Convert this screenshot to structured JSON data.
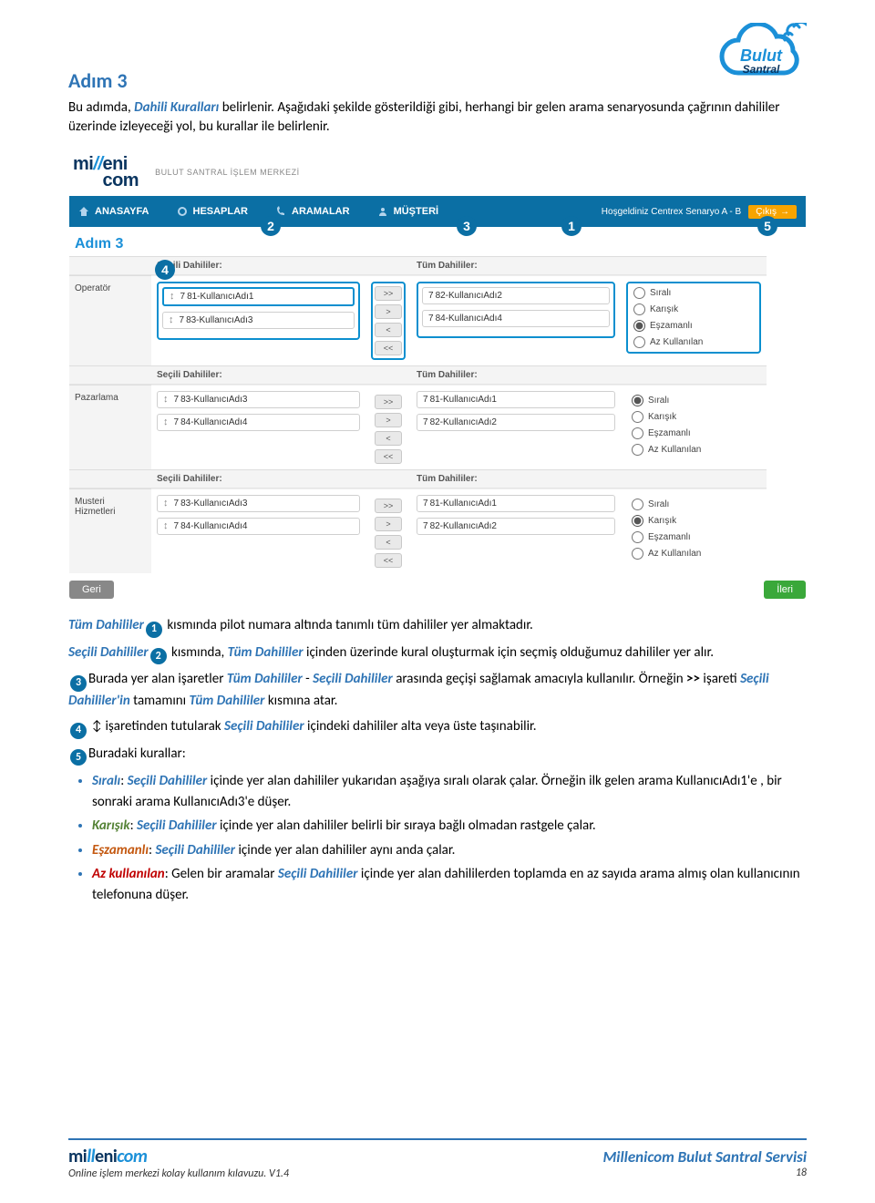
{
  "logo": {
    "line1": "Bulut",
    "line2": "Santral"
  },
  "heading": "Adım 3",
  "intro_parts": {
    "p1": "Bu adımda, ",
    "dahili_kurallari": "Dahili Kuralları",
    "p2": " belirlenir. Aşağıdaki şekilde gösterildiği gibi, herhangi bir gelen arama senaryosunda çağrının dahililer üzerinde izleyeceği yol, bu kurallar ile belirlenir."
  },
  "shot": {
    "brand_sub": "BULUT SANTRAL İŞLEM MERKEZİ",
    "nav": {
      "anasayfa": "ANASAYFA",
      "hesaplar": "HESAPLAR",
      "aramalar": "ARAMALAR",
      "musteri": "MÜŞTERİ"
    },
    "welcome": "Hoşgeldiniz Centrex Senaryo A - B",
    "exit": "Çıkış",
    "step_label": "Adım 3",
    "headers": {
      "secili": "Seçili Dahililer:",
      "tum": "Tüm Dahililer:"
    },
    "rows": [
      {
        "label": "Operatör",
        "secili": [
          {
            "num": "7",
            "rest": "81-KullanıcıAdı1",
            "hl": true
          },
          {
            "num": "7",
            "rest": "83-KullanıcıAdı3"
          }
        ],
        "tum": [
          {
            "num": "7",
            "rest": "82-KullanıcıAdı2"
          },
          {
            "num": "7",
            "rest": "84-KullanıcıAdı4"
          }
        ],
        "radio_sel": 2,
        "hl_secili": true,
        "hl_tum": true,
        "hl_xfer": true,
        "hl_radio": true
      },
      {
        "label": "Pazarlama",
        "secili": [
          {
            "num": "7",
            "rest": "83-KullanıcıAdı3"
          },
          {
            "num": "7",
            "rest": "84-KullanıcıAdı4"
          }
        ],
        "tum": [
          {
            "num": "7",
            "rest": "81-KullanıcıAdı1"
          },
          {
            "num": "7",
            "rest": "82-KullanıcıAdı2"
          }
        ],
        "radio_sel": 0
      },
      {
        "label": "Musteri Hizmetleri",
        "secili": [
          {
            "num": "7",
            "rest": "83-KullanıcıAdı3"
          },
          {
            "num": "7",
            "rest": "84-KullanıcıAdı4"
          }
        ],
        "tum": [
          {
            "num": "7",
            "rest": "81-KullanıcıAdı1"
          },
          {
            "num": "7",
            "rest": "82-KullanıcıAdı2"
          }
        ],
        "radio_sel": 1
      }
    ],
    "xfer": [
      ">>",
      ">",
      "<",
      "<<"
    ],
    "radio_opts": [
      "Sıralı",
      "Karışık",
      "Eşzamanlı",
      "Az Kullanılan"
    ],
    "back": "Geri",
    "next": "İleri"
  },
  "markers": {
    "m1": "1",
    "m2": "2",
    "m3": "3",
    "m4": "4",
    "m5": "5"
  },
  "explain": {
    "l1a": "Tüm Dahililer",
    "l1b": " kısmında pilot numara altında tanımlı tüm dahililer yer almaktadır.",
    "l2a": "Seçili Dahililer",
    "l2b": " kısmında, ",
    "l2c": "Tüm Dahililer",
    "l2d": " içinden üzerinde kural oluşturmak için seçmiş olduğumuz dahililer yer alır.",
    "l3a": "Burada yer alan işaretler  ",
    "l3b": "Tüm Dahililer",
    "l3c": " - ",
    "l3d": "Seçili Dahililer",
    "l3e": " arasında geçişi sağlamak amacıyla kullanılır. Örneğin ",
    "l3f": ">>",
    "l3g": " işareti ",
    "l3h": "Seçili Dahililer'in",
    "l3i": " tamamını ",
    "l3j": "Tüm Dahililer",
    "l3k": " kısmına atar.",
    "l4a": " işaretinden tutularak ",
    "l4b": "Seçili Dahililer",
    "l4c": " içindeki dahililer alta veya üste taşınabilir.",
    "l5": "Buradaki kurallar:",
    "b1a": "Sıralı",
    "b1b": ": ",
    "b1c": "Seçili Dahililer",
    "b1d": " içinde yer alan dahililer yukarıdan aşağıya sıralı olarak çalar. Örneğin ilk gelen arama KullanıcıAdı1'e , bir sonraki arama KullanıcıAdı3'e düşer.",
    "b2a": "Karışık",
    "b2b": ": ",
    "b2c": "Seçili Dahililer",
    "b2d": " içinde yer alan dahililer belirli bir sıraya bağlı olmadan rastgele çalar.",
    "b3a": "Eşzamanlı",
    "b3b": ": ",
    "b3c": "Seçili Dahililer",
    "b3d": " içinde yer alan dahililer aynı anda çalar.",
    "b4a": "Az kullanılan",
    "b4b": ": Gelen bir aramalar ",
    "b4c": "Seçili Dahililer",
    "b4d": " içinde yer alan dahililerden toplamda en az sayıda arama almış olan kullanıcının telefonuna düşer."
  },
  "footer": {
    "service": "Millenicom Bulut Santral Servisi",
    "guide": "Online işlem merkezi kolay kullanım kılavuzu. V1.4",
    "page": "18"
  },
  "colors": {
    "brand_blue": "#2e74b5",
    "nav_blue": "#0b6fa4",
    "hl_blue": "#0b8fcf"
  }
}
